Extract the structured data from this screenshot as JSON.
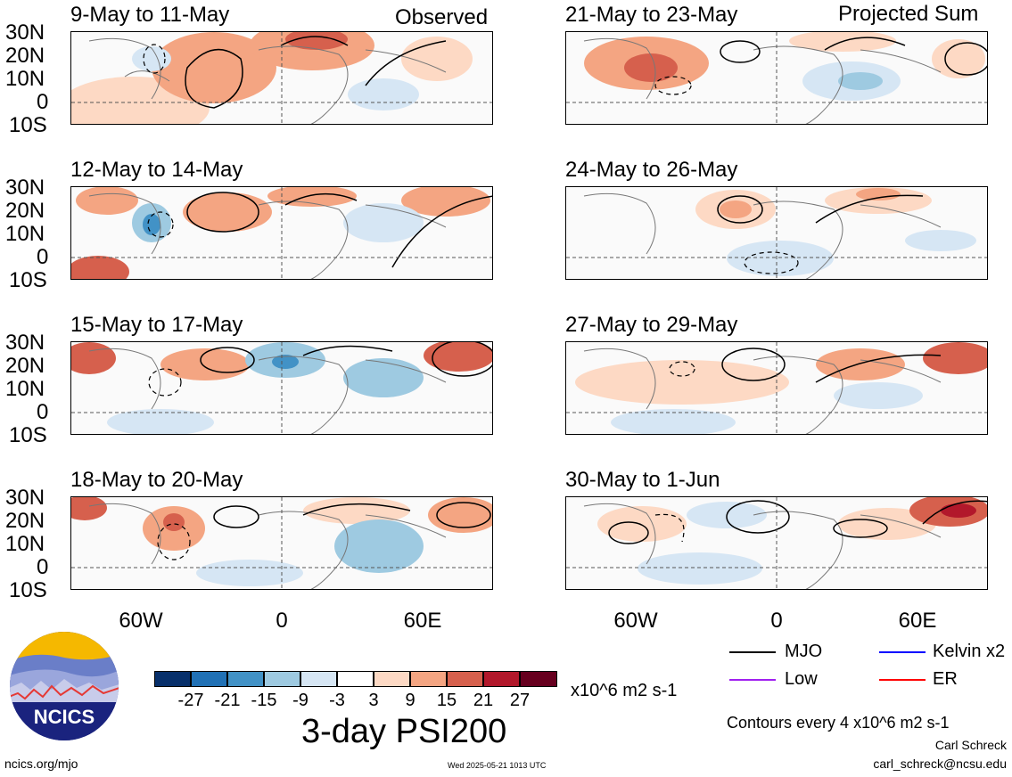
{
  "header": {
    "observed_label": "Observed",
    "projected_label": "Projected Sum"
  },
  "panels": [
    {
      "title": "9-May to 11-May"
    },
    {
      "title": "21-May to 23-May"
    },
    {
      "title": "12-May to 14-May"
    },
    {
      "title": "24-May to 26-May"
    },
    {
      "title": "15-May to 17-May"
    },
    {
      "title": "27-May to 29-May"
    },
    {
      "title": "18-May to 20-May"
    },
    {
      "title": "30-May to 1-Jun"
    }
  ],
  "lat_labels": [
    "30N",
    "20N",
    "10N",
    "0",
    "10S"
  ],
  "lon_labels": [
    "60W",
    "0",
    "60E"
  ],
  "colorbar": {
    "ticks": [
      "-27",
      "-21",
      "-15",
      "-9",
      "-3",
      "3",
      "9",
      "15",
      "21",
      "27"
    ],
    "colors": [
      "#08306b",
      "#2171b5",
      "#4292c6",
      "#9ecae1",
      "#d6e6f4",
      "#ffffff",
      "#fdd9c4",
      "#f4a582",
      "#d6604d",
      "#b2182b",
      "#67001f"
    ],
    "units": "x10^6 m2 s-1"
  },
  "title": "3-day PSI200",
  "legend": [
    {
      "label": "MJO",
      "color": "#000000"
    },
    {
      "label": "Kelvin x2",
      "color": "#0000ff"
    },
    {
      "label": "Low",
      "color": "#a020f0"
    },
    {
      "label": "ER",
      "color": "#ff0000"
    }
  ],
  "contour_note": "Contours every 4 x10^6 m2 s-1",
  "author": "Carl Schreck",
  "email": "carl_schreck@ncsu.edu",
  "site": "ncics.org/mjo",
  "timestamp": "Wed 2025-05-21 1013 UTC",
  "logo_text": "NCICS"
}
